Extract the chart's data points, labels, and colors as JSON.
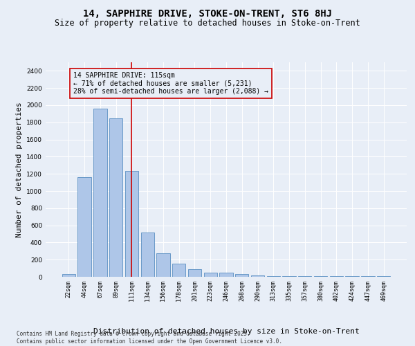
{
  "title": "14, SAPPHIRE DRIVE, STOKE-ON-TRENT, ST6 8HJ",
  "subtitle": "Size of property relative to detached houses in Stoke-on-Trent",
  "xlabel": "Distribution of detached houses by size in Stoke-on-Trent",
  "ylabel": "Number of detached properties",
  "categories": [
    "22sqm",
    "44sqm",
    "67sqm",
    "89sqm",
    "111sqm",
    "134sqm",
    "156sqm",
    "178sqm",
    "201sqm",
    "223sqm",
    "246sqm",
    "268sqm",
    "290sqm",
    "313sqm",
    "335sqm",
    "357sqm",
    "380sqm",
    "402sqm",
    "424sqm",
    "447sqm",
    "469sqm"
  ],
  "values": [
    30,
    1160,
    1960,
    1850,
    1230,
    515,
    275,
    155,
    90,
    50,
    45,
    35,
    20,
    10,
    8,
    5,
    5,
    5,
    5,
    5,
    5
  ],
  "bar_color": "#aec6e8",
  "bar_edge_color": "#5a8fc2",
  "highlight_index": 4,
  "highlight_line_color": "#cc0000",
  "ylim": [
    0,
    2500
  ],
  "yticks": [
    0,
    200,
    400,
    600,
    800,
    1000,
    1200,
    1400,
    1600,
    1800,
    2000,
    2200,
    2400
  ],
  "background_color": "#e8eef7",
  "grid_color": "#ffffff",
  "annotation_text": "14 SAPPHIRE DRIVE: 115sqm\n← 71% of detached houses are smaller (5,231)\n28% of semi-detached houses are larger (2,088) →",
  "annotation_box_color": "#cc0000",
  "footer_line1": "Contains HM Land Registry data © Crown copyright and database right 2025.",
  "footer_line2": "Contains public sector information licensed under the Open Government Licence v3.0.",
  "title_fontsize": 10,
  "subtitle_fontsize": 8.5,
  "tick_fontsize": 6,
  "label_fontsize": 8,
  "annotation_fontsize": 7,
  "footer_fontsize": 5.5
}
